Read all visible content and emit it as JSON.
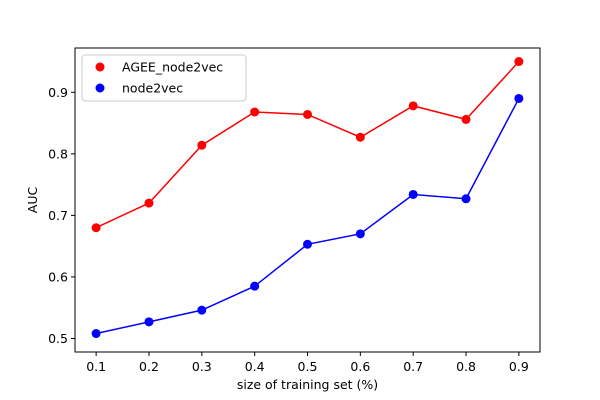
{
  "chart_data": {
    "type": "line",
    "xlabel": "size of training set (%)",
    "ylabel": "AUC",
    "x": [
      0.1,
      0.2,
      0.3,
      0.4,
      0.5,
      0.6,
      0.7,
      0.8,
      0.9
    ],
    "x_tick_labels": [
      "0.1",
      "0.2",
      "0.3",
      "0.4",
      "0.5",
      "0.6",
      "0.7",
      "0.8",
      "0.9"
    ],
    "y_ticks": [
      0.5,
      0.6,
      0.7,
      0.8,
      0.9
    ],
    "y_tick_labels": [
      "0.5",
      "0.6",
      "0.7",
      "0.8",
      "0.9"
    ],
    "xlim": [
      0.06,
      0.94
    ],
    "ylim": [
      0.478,
      0.972
    ],
    "grid": false,
    "legend_position": "upper left",
    "series": [
      {
        "name": "AGEE_node2vec",
        "color": "#ff0000",
        "values": [
          0.68,
          0.72,
          0.814,
          0.868,
          0.864,
          0.827,
          0.878,
          0.856,
          0.95
        ]
      },
      {
        "name": "node2vec",
        "color": "#0000ff",
        "values": [
          0.508,
          0.527,
          0.546,
          0.585,
          0.653,
          0.67,
          0.734,
          0.727,
          0.89
        ]
      }
    ]
  }
}
